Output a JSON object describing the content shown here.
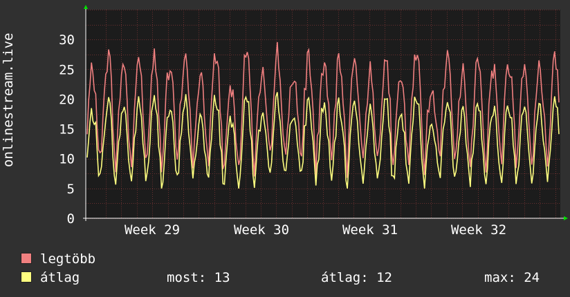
{
  "chart_data": {
    "type": "line",
    "ylabel": "onlinestream.live",
    "ylim": [
      0,
      35
    ],
    "yticks": [
      0,
      5,
      10,
      15,
      20,
      25,
      30
    ],
    "x_ticks": [
      "Week 29",
      "Week 30",
      "Week 31",
      "Week 32"
    ],
    "grid": true,
    "series": [
      {
        "name": "legtöbb",
        "color": "#f08080"
      },
      {
        "name": "átlag",
        "color": "#ffff80"
      }
    ],
    "legend": "bottom-left",
    "stats": {
      "most_label": "most:",
      "most_value": "13",
      "avg_label": "átlag:",
      "avg_value": "12",
      "max_label": "max:",
      "max_value": "24"
    }
  },
  "colors": {
    "background": "#303030",
    "plot": "#1c1c1c",
    "grid": "#5a2c2c",
    "axis_arrow": "#00e000"
  }
}
